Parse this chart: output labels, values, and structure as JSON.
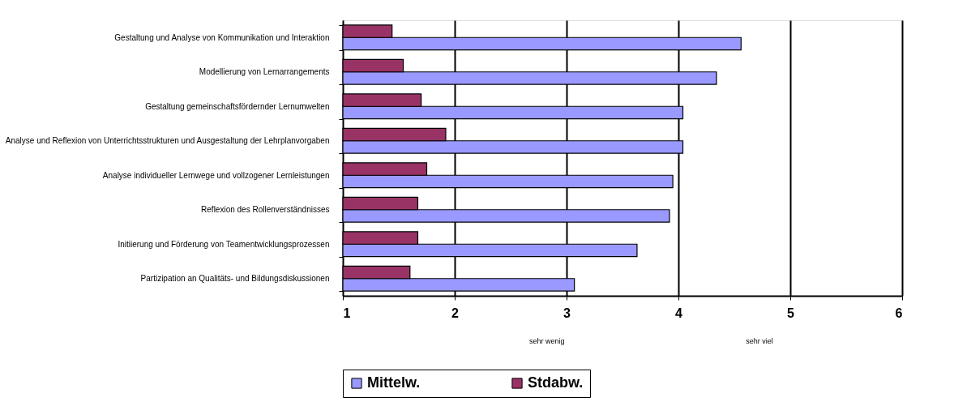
{
  "chart_data": {
    "type": "bar",
    "orientation": "horizontal",
    "categories": [
      "Gestaltung und Analyse von Kommunikation und Interaktion",
      "Modellierung von Lernarrangements",
      "Gestaltung gemeinschaftsfördernder Lernumwelten",
      "Analyse und Reflexion von Unterrichtsstrukturen und Ausgestaltung der Lehrplanvorgaben",
      "Analyse individueller Lernwege und vollzogener Lernleistungen",
      "Reflexion des Rollenverständnisses",
      "Initiierung und Förderung von Teamentwicklungsprozessen",
      "Partizipation an Qualitäts- und Bildungsdiskussionen"
    ],
    "series": [
      {
        "name": "Mittelw.",
        "color": "#9999ff",
        "values": [
          4.56,
          4.34,
          4.04,
          4.04,
          3.95,
          3.92,
          3.63,
          3.07
        ]
      },
      {
        "name": "Stdabw.",
        "color": "#993366",
        "values": [
          1.44,
          1.54,
          1.7,
          1.92,
          1.75,
          1.67,
          1.67,
          1.6
        ]
      }
    ],
    "xlim": [
      1,
      6
    ],
    "xticks": [
      1,
      2,
      3,
      4,
      5,
      6
    ],
    "grid": "x",
    "legend": "bottom",
    "annotations": [
      "sehr wenig",
      "sehr viel"
    ]
  }
}
